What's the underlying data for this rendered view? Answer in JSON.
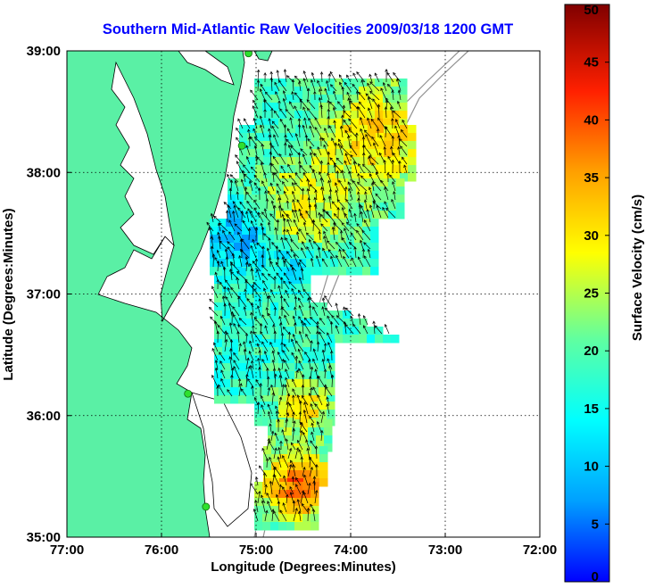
{
  "title": "Southern Mid-Atlantic Raw Velocities 2009/03/18 1200 GMT",
  "map": {
    "xlabel": "Longitude (Degrees:Minutes)",
    "ylabel": "Latitude (Degrees:Minutes)",
    "lon_range": [
      -77,
      -72
    ],
    "lat_range": [
      35,
      39
    ],
    "x_ticks": [
      {
        "value": -77,
        "label": "77:00"
      },
      {
        "value": -76,
        "label": "76:00"
      },
      {
        "value": -75,
        "label": "75:00"
      },
      {
        "value": -74,
        "label": "74:00"
      },
      {
        "value": -73,
        "label": "73:00"
      },
      {
        "value": -72,
        "label": "72:00"
      }
    ],
    "y_ticks": [
      {
        "value": 35,
        "label": "35:00"
      },
      {
        "value": 36,
        "label": "36:00"
      },
      {
        "value": 37,
        "label": "37:00"
      },
      {
        "value": 38,
        "label": "38:00"
      },
      {
        "value": 39,
        "label": "39:00"
      }
    ],
    "grid": true,
    "land_color": "#5af0a5",
    "water_color": "#ffffff",
    "arrow_color": "#000000",
    "station_color": "#2ee02e",
    "stations": [
      {
        "lon": -75.08,
        "lat": 38.98
      },
      {
        "lon": -75.15,
        "lat": 38.22
      },
      {
        "lon": -75.72,
        "lat": 36.18
      },
      {
        "lon": -75.53,
        "lat": 35.25
      }
    ]
  },
  "colorbar": {
    "label": "Surface Velocity (cm/s)",
    "min": 0,
    "max": 50,
    "ticks": [
      {
        "value": 0,
        "label": "0"
      },
      {
        "value": 5,
        "label": "5"
      },
      {
        "value": 10,
        "label": "10"
      },
      {
        "value": 15,
        "label": "15"
      },
      {
        "value": 20,
        "label": "20"
      },
      {
        "value": 25,
        "label": "25"
      },
      {
        "value": 30,
        "label": "30"
      },
      {
        "value": 35,
        "label": "35"
      },
      {
        "value": 40,
        "label": "40"
      },
      {
        "value": 45,
        "label": "45"
      },
      {
        "value": 50,
        "label": "50"
      }
    ],
    "colormap": [
      "#0000ff",
      "#00a0ff",
      "#00ffff",
      "#60ffa0",
      "#ffff00",
      "#ffa000",
      "#ff2000",
      "#800000"
    ]
  }
}
